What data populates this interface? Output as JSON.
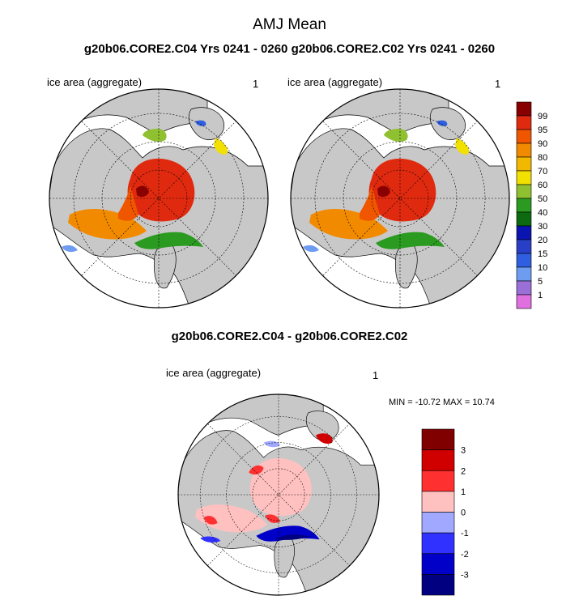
{
  "figure": {
    "title": "AMJ Mean",
    "subtitle": "g20b06.CORE2.C04  Yrs 0241 - 0260 g20b06.CORE2.C02  Yrs 0241 - 0260",
    "diff_title": "g20b06.CORE2.C04 - g20b06.CORE2.C02"
  },
  "panels": [
    {
      "name": "C04",
      "label": "ice area  (aggregate)",
      "number": "1"
    },
    {
      "name": "C02",
      "label": "ice area  (aggregate)",
      "number": "1"
    },
    {
      "name": "diff",
      "label": "ice area  (aggregate)",
      "number": "1",
      "stats": "MIN = -10.72 MAX =  10.74"
    }
  ],
  "chart_data": [
    {
      "type": "heatmap",
      "title": "ice area  (aggregate)",
      "panel": "g20b06.CORE2.C04 Yrs 0241 - 0260",
      "projection": "north polar stereographic",
      "colorbar": {
        "levels": [
          1,
          5,
          10,
          15,
          20,
          30,
          40,
          50,
          60,
          70,
          80,
          90,
          95,
          99
        ],
        "tick_labels": [
          "1",
          "5",
          "10",
          "15",
          "20",
          "30",
          "40",
          "50",
          "60",
          "70",
          "80",
          "90",
          "95",
          "99"
        ],
        "colors": [
          "#e070e0",
          "#9a6fd8",
          "#6e9cf0",
          "#2f5fe0",
          "#2a3fc8",
          "#0a14b0",
          "#0c6a10",
          "#2a9a20",
          "#8fc030",
          "#f2e000",
          "#f2b800",
          "#f28a00",
          "#f05500",
          "#e02a10",
          "#880000"
        ]
      },
      "fields": {
        "central_arctic": "95-99",
        "hudson_bay": "90-95",
        "marginal_zone": "30-90",
        "ice_edge": "1-20"
      }
    },
    {
      "type": "heatmap",
      "title": "ice area  (aggregate)",
      "panel": "g20b06.CORE2.C02 Yrs 0241 - 0260",
      "projection": "north polar stereographic",
      "colorbar": "shared with panel C04"
    },
    {
      "type": "heatmap",
      "title": "ice area  (aggregate)",
      "panel": "g20b06.CORE2.C04 - g20b06.CORE2.C02",
      "projection": "north polar stereographic",
      "min": -10.72,
      "max": 10.74,
      "colorbar": {
        "levels": [
          -3,
          -2,
          -1,
          0,
          1,
          2,
          3
        ],
        "tick_labels": [
          "-3",
          "-2",
          "-1",
          "0",
          "1",
          "2",
          "3"
        ],
        "colors": [
          "#000080",
          "#0000c8",
          "#3030ff",
          "#a0a8ff",
          "#ffc0c0",
          "#ff3030",
          "#d00000",
          "#800000"
        ]
      }
    }
  ],
  "colors": {
    "land": "#c8c8c8",
    "ocean": "#ffffff"
  }
}
